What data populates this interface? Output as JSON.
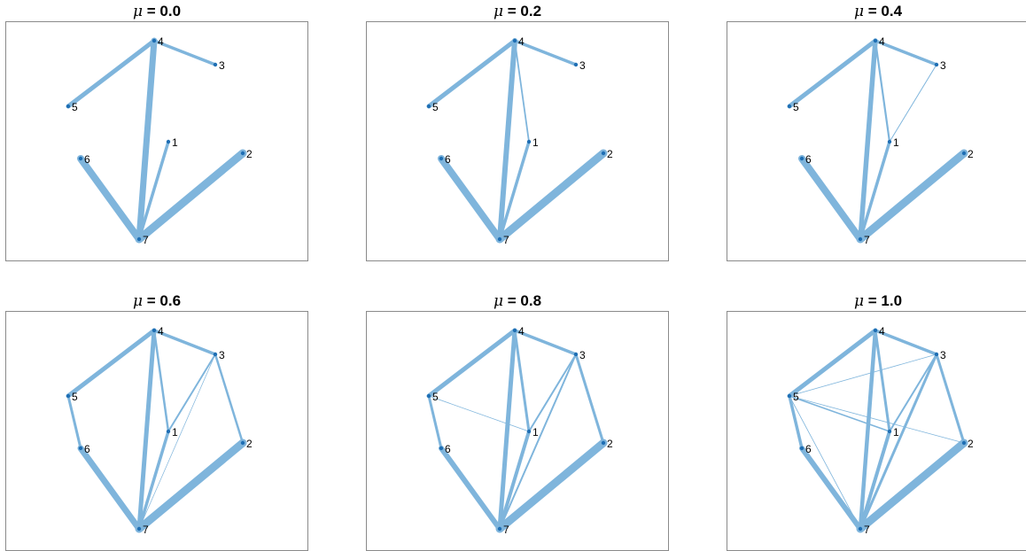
{
  "figure": {
    "edge_color": "#7fb5dc",
    "node_color": "#1f6fb4",
    "nodes": [
      "1",
      "2",
      "3",
      "4",
      "5",
      "6",
      "7"
    ],
    "panels": [
      {
        "mu_symbol": "μ",
        "title_value": " = 0.0",
        "edges": [
          {
            "source": "4",
            "target": "5",
            "weight": 5
          },
          {
            "source": "4",
            "target": "3",
            "weight": 3.5
          },
          {
            "source": "4",
            "target": "7",
            "weight": 7
          },
          {
            "source": "1",
            "target": "7",
            "weight": 3.5
          },
          {
            "source": "6",
            "target": "7",
            "weight": 8
          },
          {
            "source": "2",
            "target": "7",
            "weight": 9
          }
        ]
      },
      {
        "mu_symbol": "μ",
        "title_value": " = 0.2",
        "edges": [
          {
            "source": "4",
            "target": "5",
            "weight": 5
          },
          {
            "source": "4",
            "target": "3",
            "weight": 3.5
          },
          {
            "source": "4",
            "target": "7",
            "weight": 6
          },
          {
            "source": "4",
            "target": "1",
            "weight": 1.8
          },
          {
            "source": "1",
            "target": "7",
            "weight": 3.5
          },
          {
            "source": "6",
            "target": "7",
            "weight": 8
          },
          {
            "source": "2",
            "target": "7",
            "weight": 9
          }
        ]
      },
      {
        "mu_symbol": "μ",
        "title_value": " = 0.4",
        "edges": [
          {
            "source": "4",
            "target": "5",
            "weight": 5
          },
          {
            "source": "4",
            "target": "3",
            "weight": 3.5
          },
          {
            "source": "4",
            "target": "7",
            "weight": 5.5
          },
          {
            "source": "4",
            "target": "1",
            "weight": 2.2
          },
          {
            "source": "3",
            "target": "1",
            "weight": 1
          },
          {
            "source": "1",
            "target": "7",
            "weight": 3.5
          },
          {
            "source": "6",
            "target": "7",
            "weight": 8
          },
          {
            "source": "2",
            "target": "7",
            "weight": 9
          }
        ]
      },
      {
        "mu_symbol": "μ",
        "title_value": " = 0.6",
        "edges": [
          {
            "source": "4",
            "target": "5",
            "weight": 5
          },
          {
            "source": "4",
            "target": "3",
            "weight": 3.5
          },
          {
            "source": "4",
            "target": "7",
            "weight": 5
          },
          {
            "source": "4",
            "target": "1",
            "weight": 2.5
          },
          {
            "source": "3",
            "target": "1",
            "weight": 2
          },
          {
            "source": "3",
            "target": "2",
            "weight": 2.5
          },
          {
            "source": "3",
            "target": "7",
            "weight": 0.7
          },
          {
            "source": "5",
            "target": "6",
            "weight": 3
          },
          {
            "source": "1",
            "target": "7",
            "weight": 3.5
          },
          {
            "source": "6",
            "target": "7",
            "weight": 7
          },
          {
            "source": "2",
            "target": "7",
            "weight": 9
          }
        ]
      },
      {
        "mu_symbol": "μ",
        "title_value": " = 0.8",
        "edges": [
          {
            "source": "4",
            "target": "5",
            "weight": 5
          },
          {
            "source": "4",
            "target": "3",
            "weight": 3.5
          },
          {
            "source": "4",
            "target": "7",
            "weight": 5
          },
          {
            "source": "4",
            "target": "1",
            "weight": 3
          },
          {
            "source": "3",
            "target": "1",
            "weight": 2
          },
          {
            "source": "3",
            "target": "2",
            "weight": 3
          },
          {
            "source": "3",
            "target": "7",
            "weight": 2
          },
          {
            "source": "5",
            "target": "1",
            "weight": 0.8
          },
          {
            "source": "5",
            "target": "6",
            "weight": 3
          },
          {
            "source": "1",
            "target": "7",
            "weight": 4
          },
          {
            "source": "6",
            "target": "7",
            "weight": 6
          },
          {
            "source": "2",
            "target": "7",
            "weight": 9
          }
        ]
      },
      {
        "mu_symbol": "μ",
        "title_value": " = 1.0",
        "edges": [
          {
            "source": "4",
            "target": "5",
            "weight": 5
          },
          {
            "source": "4",
            "target": "3",
            "weight": 3.5
          },
          {
            "source": "4",
            "target": "7",
            "weight": 4.5
          },
          {
            "source": "4",
            "target": "1",
            "weight": 3
          },
          {
            "source": "3",
            "target": "1",
            "weight": 2
          },
          {
            "source": "3",
            "target": "2",
            "weight": 3
          },
          {
            "source": "3",
            "target": "7",
            "weight": 3
          },
          {
            "source": "5",
            "target": "3",
            "weight": 0.8
          },
          {
            "source": "5",
            "target": "1",
            "weight": 1.5
          },
          {
            "source": "5",
            "target": "2",
            "weight": 0.8
          },
          {
            "source": "5",
            "target": "7",
            "weight": 0.8
          },
          {
            "source": "5",
            "target": "6",
            "weight": 3.5
          },
          {
            "source": "1",
            "target": "7",
            "weight": 4
          },
          {
            "source": "6",
            "target": "7",
            "weight": 6
          },
          {
            "source": "2",
            "target": "7",
            "weight": 9
          }
        ]
      }
    ]
  }
}
